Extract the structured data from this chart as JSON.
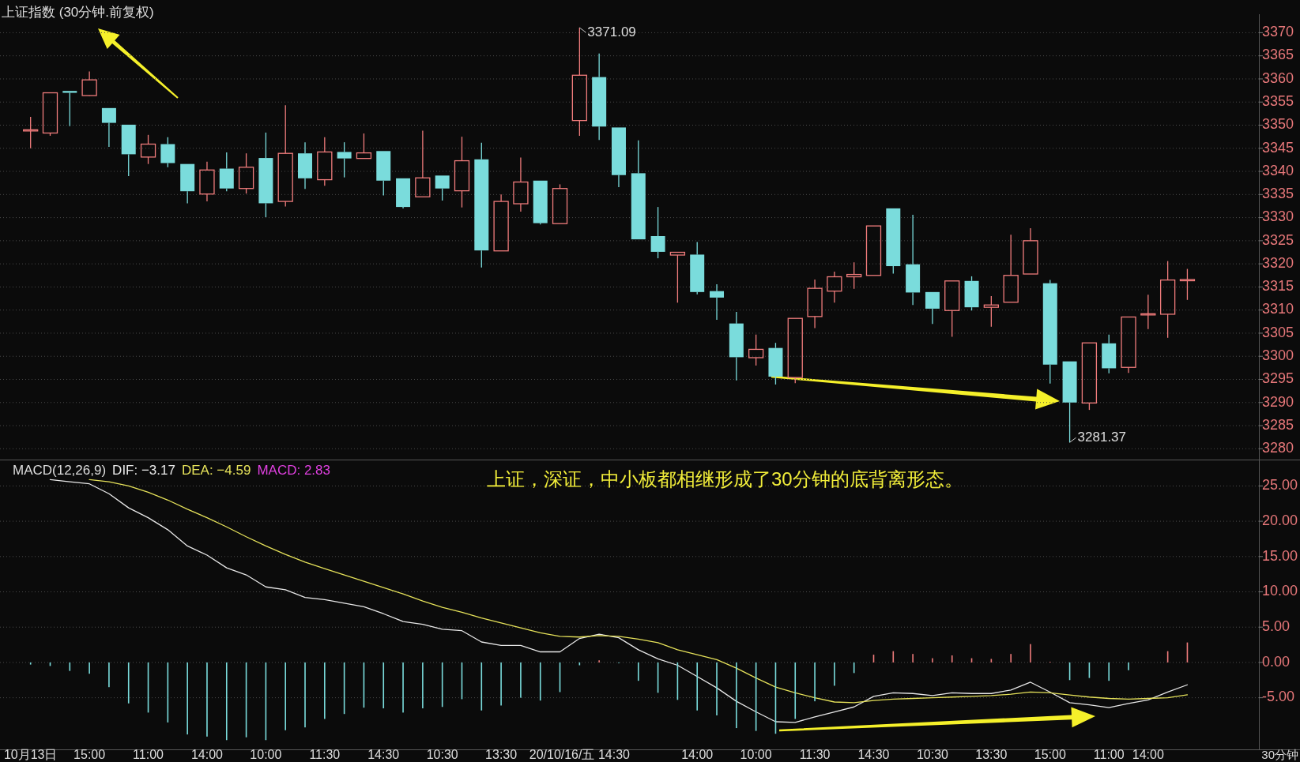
{
  "chart_data": [
    {
      "type": "candlestick",
      "title": "上证指数 (30分钟.前复权)",
      "categories": [
        null,
        null,
        null,
        null,
        null,
        null,
        null,
        null,
        null,
        null,
        null,
        null,
        null,
        null,
        null,
        null,
        null,
        null,
        null,
        null,
        null,
        null,
        null,
        null,
        null,
        null,
        null,
        null,
        null,
        null,
        null,
        null,
        null,
        null,
        null,
        null,
        null,
        null,
        null,
        null,
        null,
        null,
        null,
        null,
        null,
        null,
        null,
        null,
        null,
        null,
        null,
        null,
        null,
        null,
        null,
        null,
        null,
        null,
        null,
        null
      ],
      "ohlc": [
        [
          3348.8,
          3351.8,
          3345.0,
          3349.0
        ],
        [
          3348.3,
          3357.0,
          3347.7,
          3357.0
        ],
        [
          3357.4,
          3357.4,
          3349.8,
          3357.0
        ],
        [
          3356.4,
          3361.6,
          3356.3,
          3359.8
        ],
        [
          3353.7,
          3353.7,
          3345.3,
          3350.5
        ],
        [
          3350.1,
          3350.1,
          3339.0,
          3343.7
        ],
        [
          3343.1,
          3347.9,
          3341.6,
          3345.9
        ],
        [
          3345.9,
          3347.4,
          3340.9,
          3341.8
        ],
        [
          3341.6,
          3341.6,
          3333.1,
          3335.7
        ],
        [
          3335.1,
          3342.1,
          3333.5,
          3340.3
        ],
        [
          3340.6,
          3344.1,
          3335.7,
          3336.3
        ],
        [
          3336.3,
          3343.9,
          3335.2,
          3340.9
        ],
        [
          3342.9,
          3348.4,
          3330.1,
          3333.1
        ],
        [
          3333.5,
          3354.3,
          3332.4,
          3343.9
        ],
        [
          3343.9,
          3346.3,
          3336.2,
          3338.5
        ],
        [
          3338.2,
          3347.4,
          3336.9,
          3344.2
        ],
        [
          3344.2,
          3346.3,
          3338.7,
          3342.8
        ],
        [
          3342.8,
          3348.2,
          3342.8,
          3344.0
        ],
        [
          3344.4,
          3344.4,
          3334.8,
          3338.0
        ],
        [
          3338.5,
          3338.5,
          3332.0,
          3332.3
        ],
        [
          3334.5,
          3348.8,
          3334.5,
          3338.6
        ],
        [
          3339.1,
          3339.1,
          3333.7,
          3336.3
        ],
        [
          3335.8,
          3347.5,
          3332.2,
          3342.3
        ],
        [
          3342.6,
          3346.2,
          3319.2,
          3322.9
        ],
        [
          3322.8,
          3335.0,
          3322.8,
          3333.5
        ],
        [
          3333.0,
          3343.0,
          3331.3,
          3337.7
        ],
        [
          3338.0,
          3338.0,
          3328.5,
          3328.8
        ],
        [
          3328.7,
          3337.2,
          3328.7,
          3336.3
        ],
        [
          3351.0,
          3371.09,
          3347.7,
          3360.8
        ],
        [
          3360.4,
          3365.5,
          3346.8,
          3349.7
        ],
        [
          3349.5,
          3349.5,
          3336.6,
          3339.2
        ],
        [
          3339.6,
          3346.7,
          3325.3,
          3325.3
        ],
        [
          3326.0,
          3332.3,
          3321.2,
          3322.6
        ],
        [
          3321.9,
          3322.5,
          3311.6,
          3322.5
        ],
        [
          3322.0,
          3324.7,
          3313.4,
          3313.9
        ],
        [
          3314.1,
          3315.6,
          3307.9,
          3312.7
        ],
        [
          3307.1,
          3309.6,
          3294.8,
          3299.8
        ],
        [
          3299.7,
          3304.7,
          3298.0,
          3301.5
        ],
        [
          3301.8,
          3302.9,
          3293.9,
          3295.6
        ],
        [
          3295.4,
          3308.2,
          3294.2,
          3308.2
        ],
        [
          3308.6,
          3316.6,
          3306.1,
          3314.7
        ],
        [
          3314.1,
          3318.3,
          3311.6,
          3317.2
        ],
        [
          3317.2,
          3320.3,
          3314.6,
          3317.7
        ],
        [
          3317.5,
          3328.2,
          3317.5,
          3328.2
        ],
        [
          3332.0,
          3332.0,
          3317.9,
          3319.5
        ],
        [
          3319.9,
          3330.6,
          3311.1,
          3313.8
        ],
        [
          3313.9,
          3313.9,
          3307.0,
          3310.3
        ],
        [
          3309.9,
          3316.3,
          3304.2,
          3316.3
        ],
        [
          3316.3,
          3317.3,
          3309.9,
          3310.6
        ],
        [
          3310.6,
          3313.0,
          3306.4,
          3311.1
        ],
        [
          3311.7,
          3326.3,
          3311.7,
          3317.5
        ],
        [
          3317.8,
          3327.7,
          3317.8,
          3325.0
        ],
        [
          3315.8,
          3316.5,
          3294.1,
          3298.2
        ],
        [
          3298.9,
          3298.9,
          3281.37,
          3290.0
        ],
        [
          3289.9,
          3302.9,
          3288.4,
          3302.9
        ],
        [
          3302.8,
          3304.7,
          3296.3,
          3297.4
        ],
        [
          3297.6,
          3308.5,
          3296.4,
          3308.5
        ],
        [
          3309.0,
          3313.3,
          3305.9,
          3309.2
        ],
        [
          3309.1,
          3320.6,
          3304.0,
          3316.5
        ],
        [
          3316.4,
          3318.9,
          3312.2,
          3316.6
        ]
      ],
      "colors": [
        "#f07c7c",
        "#f07c7c",
        "#7adcdc",
        "#f07c7c",
        "#7adcdc",
        "#7adcdc",
        "#f07c7c",
        "#7adcdc",
        "#7adcdc",
        "#f07c7c",
        "#7adcdc",
        "#f07c7c",
        "#7adcdc",
        "#f07c7c",
        "#7adcdc",
        "#f07c7c",
        "#7adcdc",
        "#f07c7c",
        "#7adcdc",
        "#7adcdc",
        "#f07c7c",
        "#7adcdc",
        "#f07c7c",
        "#7adcdc",
        "#f07c7c",
        "#f07c7c",
        "#7adcdc",
        "#f07c7c",
        "#f07c7c",
        "#7adcdc",
        "#7adcdc",
        "#7adcdc",
        "#7adcdc",
        "#f07c7c",
        "#7adcdc",
        "#7adcdc",
        "#7adcdc",
        "#f07c7c",
        "#7adcdc",
        "#f07c7c",
        "#f07c7c",
        "#f07c7c",
        "#f07c7c",
        "#f07c7c",
        "#7adcdc",
        "#7adcdc",
        "#7adcdc",
        "#f07c7c",
        "#7adcdc",
        "#f07c7c",
        "#f07c7c",
        "#f07c7c",
        "#7adcdc",
        "#7adcdc",
        "#f07c7c",
        "#7adcdc",
        "#f07c7c",
        "#f07c7c",
        "#f07c7c",
        "#f07c7c"
      ],
      "ylim": [
        3278,
        3374
      ],
      "yticks": [
        3280,
        3285,
        3290,
        3295,
        3300,
        3305,
        3310,
        3315,
        3320,
        3325,
        3330,
        3335,
        3340,
        3345,
        3350,
        3355,
        3360,
        3365,
        3370
      ],
      "grid": "y",
      "annotations": [
        "3371.09",
        "3281.37"
      ]
    },
    {
      "type": "line",
      "title": "MACD(12,26,9)",
      "categories": [
        "10月13日",
        null,
        null,
        "15:00",
        null,
        null,
        "11:00",
        null,
        null,
        "14:00",
        null,
        null,
        "10:00",
        null,
        null,
        "11:30",
        null,
        null,
        "14:30",
        null,
        null,
        "10:30",
        null,
        null,
        "13:30",
        null,
        null,
        null,
        "20/10/16/五 14:30",
        null,
        null,
        null,
        null,
        null,
        "14:00",
        null,
        null,
        "10:00",
        null,
        null,
        "11:30",
        null,
        null,
        "14:30",
        null,
        null,
        "10:30",
        null,
        null,
        "13:30",
        null,
        null,
        "15:00",
        null,
        null,
        "11:00",
        null,
        "14:00",
        null,
        null
      ],
      "series": [
        {
          "name": "DIF: −3.17",
          "color": "#e8e8e8",
          "values": [
            null,
            25.9,
            25.6,
            25.3,
            23.9,
            21.9,
            20.5,
            18.8,
            16.5,
            15.2,
            13.4,
            12.4,
            10.7,
            10.3,
            9.2,
            8.9,
            8.4,
            7.9,
            6.9,
            5.8,
            5.4,
            4.7,
            4.5,
            2.9,
            2.4,
            2.4,
            1.5,
            1.5,
            3.4,
            4.0,
            3.5,
            1.8,
            0.5,
            -0.4,
            -2.0,
            -3.6,
            -5.5,
            -7.0,
            -8.4,
            -8.5,
            -7.7,
            -7.0,
            -6.3,
            -4.8,
            -4.3,
            -4.4,
            -4.7,
            -4.3,
            -4.4,
            -4.4,
            -3.9,
            -2.8,
            -4.2,
            -5.7,
            -6.0,
            -6.4,
            -5.8,
            -5.3,
            -4.2,
            -3.17
          ]
        },
        {
          "name": "DEA: −4.59",
          "color": "#e6e25a",
          "values": [
            null,
            null,
            null,
            25.9,
            25.6,
            25.0,
            24.1,
            23.0,
            21.7,
            20.5,
            19.2,
            17.8,
            16.5,
            15.3,
            14.2,
            13.3,
            12.4,
            11.5,
            10.6,
            9.7,
            8.7,
            7.8,
            7.1,
            6.3,
            5.6,
            4.9,
            4.2,
            3.7,
            3.6,
            3.8,
            3.7,
            3.3,
            2.8,
            1.8,
            1.1,
            0.4,
            -0.8,
            -2.2,
            -3.5,
            -4.3,
            -5.0,
            -5.6,
            -5.7,
            -5.4,
            -5.2,
            -5.1,
            -5.0,
            -4.9,
            -4.8,
            -4.7,
            -4.5,
            -4.2,
            -4.3,
            -4.6,
            -4.9,
            -5.1,
            -5.2,
            -5.1,
            -5.0,
            -4.59
          ]
        },
        {
          "type": "bar",
          "values": [
            -0.3,
            -0.5,
            -1.2,
            -1.6,
            -3.5,
            -5.8,
            -7.1,
            -8.5,
            -10.2,
            -10.5,
            -11.0,
            -10.6,
            -11.0,
            -9.6,
            -9.2,
            -8.0,
            -7.3,
            -6.4,
            -6.5,
            -7.1,
            -6.5,
            -6.3,
            -5.2,
            -6.8,
            -6.1,
            -5.0,
            -5.4,
            -4.2,
            -0.4,
            0.3,
            -0.1,
            -2.6,
            -4.3,
            -5.3,
            -6.8,
            -7.5,
            -9.3,
            -9.7,
            -10.1,
            -8.0,
            -5.5,
            -3.3,
            -1.5,
            1.1,
            1.6,
            1.2,
            0.6,
            1.0,
            0.6,
            0.5,
            1.2,
            2.6,
            0.1,
            -2.5,
            -2.2,
            -2.6,
            -1.1,
            0,
            1.6,
            2.83
          ],
          "colors": [
            "#7adcdc",
            "#7adcdc",
            "#7adcdc",
            "#7adcdc",
            "#7adcdc",
            "#7adcdc",
            "#7adcdc",
            "#7adcdc",
            "#7adcdc",
            "#7adcdc",
            "#7adcdc",
            "#7adcdc",
            "#7adcdc",
            "#7adcdc",
            "#7adcdc",
            "#7adcdc",
            "#7adcdc",
            "#7adcdc",
            "#7adcdc",
            "#7adcdc",
            "#7adcdc",
            "#7adcdc",
            "#7adcdc",
            "#7adcdc",
            "#7adcdc",
            "#7adcdc",
            "#7adcdc",
            "#7adcdc",
            "#7adcdc",
            "#f07c7c",
            "#7adcdc",
            "#7adcdc",
            "#7adcdc",
            "#7adcdc",
            "#7adcdc",
            "#7adcdc",
            "#7adcdc",
            "#7adcdc",
            "#7adcdc",
            "#7adcdc",
            "#7adcdc",
            "#7adcdc",
            "#7adcdc",
            "#f07c7c",
            "#f07c7c",
            "#f07c7c",
            "#f07c7c",
            "#f07c7c",
            "#f07c7c",
            "#f07c7c",
            "#f07c7c",
            "#f07c7c",
            "#f07c7c",
            "#7adcdc",
            "#7adcdc",
            "#7adcdc",
            "#7adcdc",
            "#7adcdc",
            "#f07c7c",
            "#f07c7c"
          ]
        }
      ],
      "ylim": [
        -12.2,
        28.4
      ],
      "yticks": [
        {
          "value": -5,
          "label": "-5.00"
        },
        {
          "value": 0,
          "label": "0.00"
        },
        {
          "value": 5,
          "label": "5.00"
        },
        {
          "value": 10,
          "label": "10.00"
        },
        {
          "value": 15,
          "label": "15.00"
        },
        {
          "value": 20,
          "label": "20.00"
        },
        {
          "value": 25,
          "label": "25.00"
        }
      ],
      "grid": "y",
      "annotations": [
        "上证，深证，中小板都相继形成了30分钟的底背离形态。",
        "30分钟",
        "MACD: 2.83"
      ]
    }
  ]
}
